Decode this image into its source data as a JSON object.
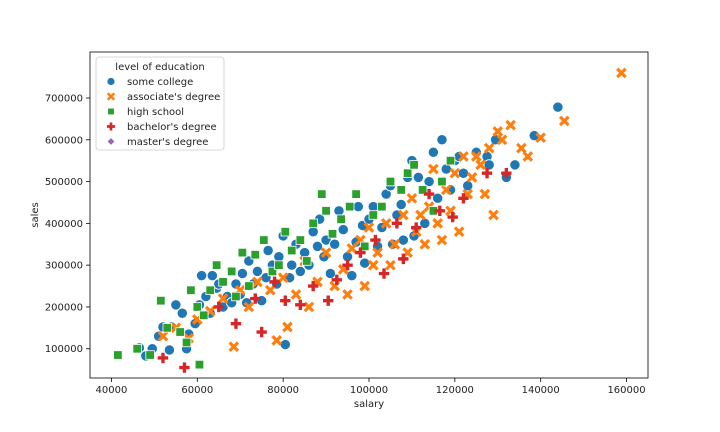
{
  "chart_data": {
    "type": "scatter",
    "title": "",
    "xlabel": "salary",
    "ylabel": "sales",
    "xlim": [
      35000,
      165000
    ],
    "ylim": [
      30000,
      810000
    ],
    "xticks": [
      40000,
      60000,
      80000,
      100000,
      120000,
      140000,
      160000
    ],
    "yticks": [
      100000,
      200000,
      300000,
      400000,
      500000,
      600000,
      700000
    ],
    "grid": false,
    "legend": {
      "title": "level of education",
      "placement": "top-left",
      "entries": [
        "some college",
        "associate's degree",
        "high school",
        "bachelor's degree",
        "master's degree"
      ]
    },
    "series": [
      {
        "name": "some college",
        "marker": "circle",
        "color": "#1f77b4",
        "points": [
          [
            46500,
            102000
          ],
          [
            48000,
            83000
          ],
          [
            49500,
            100000
          ],
          [
            51000,
            130000
          ],
          [
            52000,
            152000
          ],
          [
            53500,
            97000
          ],
          [
            54000,
            152000
          ],
          [
            55000,
            205000
          ],
          [
            56500,
            185000
          ],
          [
            57500,
            100000
          ],
          [
            58000,
            135000
          ],
          [
            59500,
            160000
          ],
          [
            60500,
            205000
          ],
          [
            61000,
            275000
          ],
          [
            62000,
            225000
          ],
          [
            63000,
            185000
          ],
          [
            63500,
            275000
          ],
          [
            64500,
            245000
          ],
          [
            65000,
            255000
          ],
          [
            66000,
            200000
          ],
          [
            67000,
            225000
          ],
          [
            68000,
            210000
          ],
          [
            69000,
            255000
          ],
          [
            70000,
            230000
          ],
          [
            70500,
            280000
          ],
          [
            71500,
            210000
          ],
          [
            72000,
            310000
          ],
          [
            73000,
            255000
          ],
          [
            74000,
            285000
          ],
          [
            75000,
            215000
          ],
          [
            76000,
            270000
          ],
          [
            76500,
            335000
          ],
          [
            77500,
            300000
          ],
          [
            78500,
            255000
          ],
          [
            79000,
            320000
          ],
          [
            80000,
            370000
          ],
          [
            80500,
            110000
          ],
          [
            81500,
            270000
          ],
          [
            82000,
            300000
          ],
          [
            83000,
            350000
          ],
          [
            84000,
            285000
          ],
          [
            85000,
            330000
          ],
          [
            86000,
            300000
          ],
          [
            87000,
            380000
          ],
          [
            88000,
            345000
          ],
          [
            88500,
            410000
          ],
          [
            89500,
            320000
          ],
          [
            90000,
            360000
          ],
          [
            91000,
            280000
          ],
          [
            92000,
            350000
          ],
          [
            93000,
            430000
          ],
          [
            94000,
            385000
          ],
          [
            95000,
            320000
          ],
          [
            96000,
            275000
          ],
          [
            97000,
            355000
          ],
          [
            97500,
            440000
          ],
          [
            98500,
            395000
          ],
          [
            99000,
            305000
          ],
          [
            100000,
            410000
          ],
          [
            101000,
            440000
          ],
          [
            102000,
            345000
          ],
          [
            103000,
            390000
          ],
          [
            104000,
            470000
          ],
          [
            105000,
            490000
          ],
          [
            105500,
            350000
          ],
          [
            106500,
            420000
          ],
          [
            107500,
            445000
          ],
          [
            108000,
            360000
          ],
          [
            109000,
            510000
          ],
          [
            110000,
            550000
          ],
          [
            110500,
            370000
          ],
          [
            111500,
            510000
          ],
          [
            112500,
            480000
          ],
          [
            113000,
            400000
          ],
          [
            114000,
            500000
          ],
          [
            115000,
            570000
          ],
          [
            116000,
            460000
          ],
          [
            117000,
            600000
          ],
          [
            118000,
            530000
          ],
          [
            119000,
            480000
          ],
          [
            120000,
            550000
          ],
          [
            121000,
            560000
          ],
          [
            122000,
            520000
          ],
          [
            123000,
            490000
          ],
          [
            125000,
            570000
          ],
          [
            127500,
            560000
          ],
          [
            128000,
            540000
          ],
          [
            129500,
            600000
          ],
          [
            132000,
            510000
          ],
          [
            134000,
            540000
          ],
          [
            138500,
            610000
          ],
          [
            144000,
            678000
          ]
        ]
      },
      {
        "name": "associate's degree",
        "marker": "x",
        "color": "#ff7f0e",
        "points": [
          [
            52000,
            130000
          ],
          [
            55000,
            150000
          ],
          [
            58000,
            125000
          ],
          [
            60000,
            170000
          ],
          [
            63000,
            190000
          ],
          [
            66000,
            220000
          ],
          [
            68500,
            105000
          ],
          [
            70000,
            240000
          ],
          [
            72000,
            200000
          ],
          [
            74000,
            260000
          ],
          [
            77000,
            240000
          ],
          [
            78500,
            120000
          ],
          [
            80000,
            270000
          ],
          [
            81000,
            152000
          ],
          [
            83000,
            230000
          ],
          [
            85000,
            310000
          ],
          [
            86000,
            200000
          ],
          [
            88000,
            260000
          ],
          [
            90000,
            330000
          ],
          [
            92000,
            250000
          ],
          [
            94000,
            290000
          ],
          [
            95000,
            230000
          ],
          [
            96000,
            340000
          ],
          [
            98000,
            360000
          ],
          [
            99000,
            250000
          ],
          [
            100000,
            390000
          ],
          [
            101000,
            300000
          ],
          [
            102000,
            330000
          ],
          [
            104000,
            400000
          ],
          [
            105000,
            300000
          ],
          [
            106000,
            350000
          ],
          [
            108000,
            420000
          ],
          [
            109000,
            330000
          ],
          [
            110000,
            460000
          ],
          [
            111000,
            380000
          ],
          [
            112000,
            420000
          ],
          [
            113000,
            350000
          ],
          [
            114000,
            440000
          ],
          [
            115000,
            530000
          ],
          [
            116000,
            400000
          ],
          [
            117000,
            360000
          ],
          [
            118000,
            480000
          ],
          [
            119000,
            430000
          ],
          [
            120000,
            520000
          ],
          [
            121000,
            380000
          ],
          [
            122000,
            560000
          ],
          [
            123000,
            470000
          ],
          [
            124000,
            510000
          ],
          [
            125000,
            560000
          ],
          [
            126000,
            540000
          ],
          [
            127000,
            470000
          ],
          [
            128000,
            580000
          ],
          [
            129000,
            420000
          ],
          [
            130000,
            620000
          ],
          [
            131000,
            600000
          ],
          [
            133000,
            635000
          ],
          [
            135500,
            580000
          ],
          [
            137000,
            560000
          ],
          [
            140000,
            605000
          ],
          [
            145500,
            645000
          ],
          [
            158800,
            760000
          ]
        ]
      },
      {
        "name": "high school",
        "marker": "square",
        "color": "#2ca02c",
        "points": [
          [
            41500,
            85000
          ],
          [
            46000,
            100000
          ],
          [
            49000,
            85000
          ],
          [
            51500,
            215000
          ],
          [
            53000,
            150000
          ],
          [
            56000,
            140000
          ],
          [
            57500,
            115000
          ],
          [
            58500,
            240000
          ],
          [
            60000,
            200000
          ],
          [
            60500,
            62000
          ],
          [
            61500,
            180000
          ],
          [
            63000,
            240000
          ],
          [
            64500,
            300000
          ],
          [
            66000,
            260000
          ],
          [
            68000,
            285000
          ],
          [
            69000,
            225000
          ],
          [
            70500,
            330000
          ],
          [
            72000,
            250000
          ],
          [
            73500,
            325000
          ],
          [
            75500,
            360000
          ],
          [
            77500,
            285000
          ],
          [
            79000,
            300000
          ],
          [
            80500,
            380000
          ],
          [
            82000,
            335000
          ],
          [
            84000,
            360000
          ],
          [
            85500,
            310000
          ],
          [
            87000,
            400000
          ],
          [
            89000,
            470000
          ],
          [
            90000,
            430000
          ],
          [
            91500,
            375000
          ],
          [
            93500,
            410000
          ],
          [
            95500,
            440000
          ],
          [
            97000,
            470000
          ],
          [
            99000,
            345000
          ],
          [
            101000,
            420000
          ],
          [
            103000,
            440000
          ],
          [
            105000,
            500000
          ],
          [
            107500,
            480000
          ],
          [
            109000,
            520000
          ],
          [
            110500,
            540000
          ],
          [
            112500,
            480000
          ],
          [
            115000,
            430000
          ],
          [
            117000,
            500000
          ],
          [
            119000,
            550000
          ]
        ]
      },
      {
        "name": "bachelor's degree",
        "marker": "plus",
        "color": "#d62728",
        "points": [
          [
            52000,
            78000
          ],
          [
            57000,
            55000
          ],
          [
            65000,
            200000
          ],
          [
            69000,
            160000
          ],
          [
            73500,
            220000
          ],
          [
            75000,
            140000
          ],
          [
            78000,
            260000
          ],
          [
            80500,
            215000
          ],
          [
            84000,
            205000
          ],
          [
            87000,
            250000
          ],
          [
            90500,
            215000
          ],
          [
            92500,
            265000
          ],
          [
            95000,
            300000
          ],
          [
            98000,
            330000
          ],
          [
            101500,
            360000
          ],
          [
            103500,
            280000
          ],
          [
            106500,
            400000
          ],
          [
            108000,
            315000
          ],
          [
            111000,
            390000
          ],
          [
            114000,
            470000
          ],
          [
            116500,
            430000
          ],
          [
            119500,
            415000
          ],
          [
            122000,
            460000
          ],
          [
            127500,
            520000
          ],
          [
            132000,
            520000
          ]
        ]
      },
      {
        "name": "master's degree",
        "marker": "diamond",
        "color": "#9467bd",
        "points": []
      }
    ]
  }
}
